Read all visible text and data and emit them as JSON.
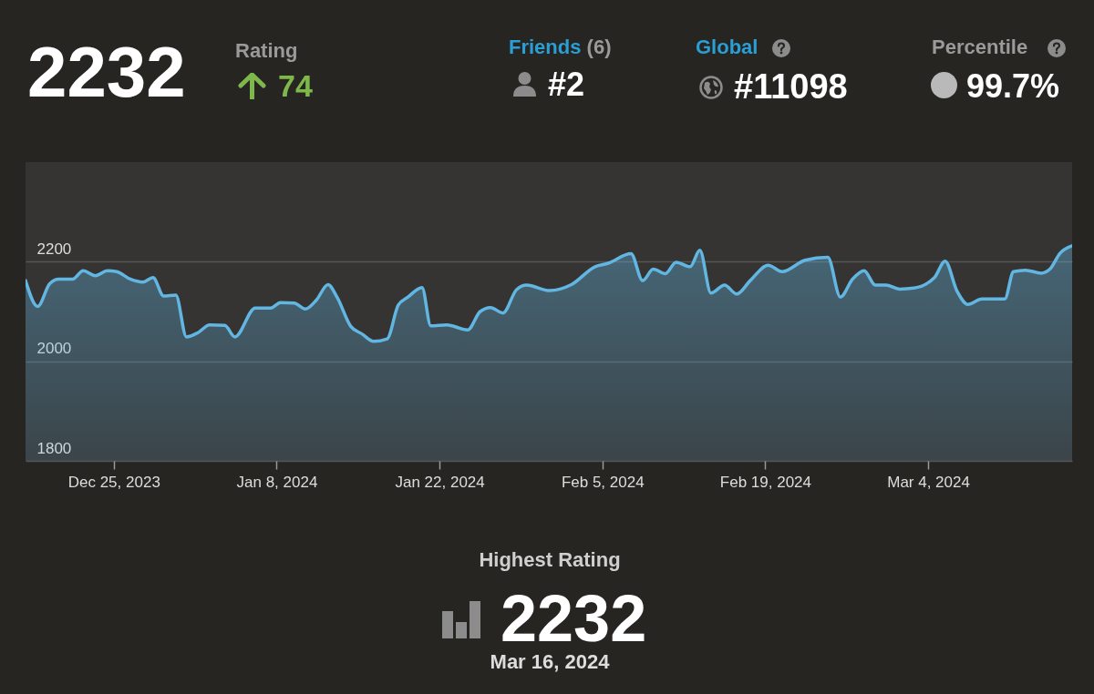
{
  "chart_data": {
    "type": "area",
    "annotations": [
      "2232",
      "Rating",
      "74",
      "Friends (6)",
      "#2",
      "Global",
      "#11098",
      "Percentile",
      "99.7%",
      "Highest Rating",
      "2232",
      "Mar 16, 2024"
    ],
    "x": [
      "2023-12-17T10:00",
      "2023-12-18T11:00",
      "2023-12-19T12:00",
      "2023-12-20T07:00",
      "2023-12-21T11:00",
      "2023-12-22T09:00",
      "2023-12-23T10:00",
      "2023-12-24T11:00",
      "2023-12-25T06:00",
      "2023-12-26T10:00",
      "2023-12-27T12:00",
      "2023-12-28T09:00",
      "2023-12-29T07:00",
      "2023-12-30T08:00",
      "2023-12-31T06:00",
      "2024-01-01T05:00",
      "2024-01-02T06:00",
      "2024-01-03T13:00",
      "2024-01-04T10:00",
      "2024-01-06T04:00",
      "2024-01-07T12:00",
      "2024-01-08T08:00",
      "2024-01-09T12:00",
      "2024-01-10T11:00",
      "2024-01-11T10:00",
      "2024-01-12T10:00",
      "2024-01-13T05:00",
      "2024-01-14T09:00",
      "2024-01-15T08:00",
      "2024-01-16T08:00",
      "2024-01-17T12:00",
      "2024-01-18T11:00",
      "2024-01-19T07:00",
      "2024-01-20T12:00",
      "2024-01-21T06:00",
      "2024-01-22T15:00",
      "2024-01-24T10:00",
      "2024-01-25T12:00",
      "2024-01-26T09:00",
      "2024-01-27T11:00",
      "2024-01-28T15:00",
      "2024-01-29T12:00",
      "2024-01-31T11:00",
      "2024-02-02T08:00",
      "2024-02-04T09:00",
      "2024-02-05T12:00",
      "2024-02-07T11:00",
      "2024-02-08T11:00",
      "2024-02-09T09:00",
      "2024-02-10T10:00",
      "2024-02-11T08:00",
      "2024-02-12T13:00",
      "2024-02-13T09:00",
      "2024-02-14T08:00",
      "2024-02-15T12:00",
      "2024-02-16T13:00",
      "2024-02-17T17:00",
      "2024-02-19T06:00",
      "2024-02-20T11:00",
      "2024-02-22T10:00",
      "2024-02-24T09:00",
      "2024-02-25T11:00",
      "2024-02-26T12:00",
      "2024-02-27T12:00",
      "2024-02-28T11:00",
      "2024-02-29T09:00",
      "2024-03-01T13:00",
      "2024-03-02T19:00",
      "2024-03-04T13:00",
      "2024-03-05T11:00",
      "2024-03-06T12:00",
      "2024-03-07T10:00",
      "2024-03-08T15:00",
      "2024-03-10T14:00",
      "2024-03-11T08:00",
      "2024-03-12T09:00",
      "2024-03-13T17:00",
      "2024-03-14T12:00",
      "2024-03-15T08:00",
      "2024-03-16T09:00"
    ],
    "series": [
      {
        "color": "#62b6e2",
        "values": [
          2162,
          2110,
          2156,
          2165,
          2165,
          2182,
          2172,
          2182,
          2180,
          2165,
          2159,
          2168,
          2131,
          2133,
          2049,
          2057,
          2073,
          2072,
          2049,
          2107,
          2107,
          2118,
          2117,
          2105,
          2123,
          2154,
          2128,
          2070,
          2055,
          2040,
          2045,
          2113,
          2129,
          2148,
          2071,
          2073,
          2063,
          2100,
          2108,
          2097,
          2144,
          2153,
          2142,
          2154,
          2190,
          2197,
          2216,
          2162,
          2185,
          2176,
          2199,
          2190,
          2223,
          2137,
          2153,
          2135,
          2162,
          2193,
          2180,
          2203,
          2209,
          2129,
          2165,
          2182,
          2153,
          2153,
          2145,
          2147,
          2168,
          2201,
          2140,
          2114,
          2125,
          2125,
          2180,
          2183,
          2177,
          2186,
          2217,
          2232
        ]
      }
    ],
    "xlim": [
      "2023-12-17T10:00",
      "2024-03-16T09:00"
    ],
    "xticks": [
      {
        "value": "2023-12-25",
        "label": "Dec 25, 2023"
      },
      {
        "value": "2024-01-08",
        "label": "Jan 8, 2024"
      },
      {
        "value": "2024-01-22",
        "label": "Jan 22, 2024"
      },
      {
        "value": "2024-02-05",
        "label": "Feb 5, 2024"
      },
      {
        "value": "2024-02-19",
        "label": "Feb 19, 2024"
      },
      {
        "value": "2024-03-04",
        "label": "Mar 4, 2024"
      }
    ],
    "ylim": [
      1800,
      2400
    ],
    "yticks": [
      1800,
      2000,
      2200
    ],
    "grid": "y"
  }
}
